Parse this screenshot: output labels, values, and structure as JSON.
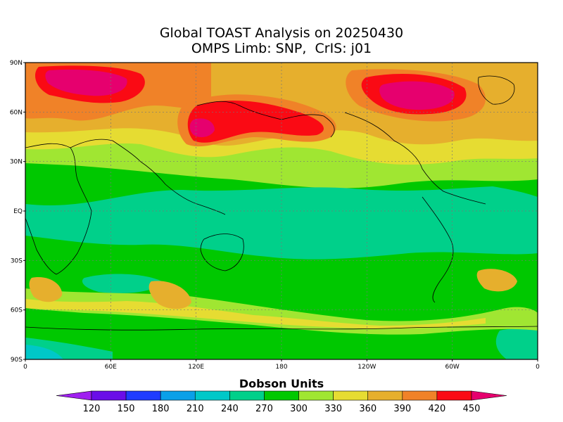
{
  "title_line1": "Global TOAST Analysis on 20250430",
  "title_line2": "OMPS Limb: SNP,  CrIS: j01",
  "lat_labels": [
    "90N",
    "60N",
    "30N",
    "EQ",
    "30S",
    "60S",
    "90S"
  ],
  "lon_labels": [
    "0",
    "60E",
    "120E",
    "180",
    "120W",
    "60W",
    "0"
  ],
  "colorbar": {
    "title": "Dobson Units",
    "tick_labels": [
      "120",
      "150",
      "180",
      "210",
      "240",
      "270",
      "300",
      "330",
      "360",
      "390",
      "420",
      "450"
    ],
    "colors": [
      "#a020f0",
      "#6a0ee8",
      "#1f3cff",
      "#0aa0e8",
      "#00c8c8",
      "#00d08a",
      "#00c800",
      "#a0e632",
      "#e6dc32",
      "#e6af2d",
      "#f08228",
      "#fa0a14",
      "#e6006e"
    ]
  },
  "fill_colors": {
    "c270": "#00d08a",
    "c300": "#00c800",
    "c330": "#a0e632",
    "c360": "#e6dc32",
    "c390": "#e6af2d",
    "c420": "#f08228",
    "c450": "#fa0a14",
    "c480": "#e6006e",
    "c240": "#00c8c8"
  }
}
